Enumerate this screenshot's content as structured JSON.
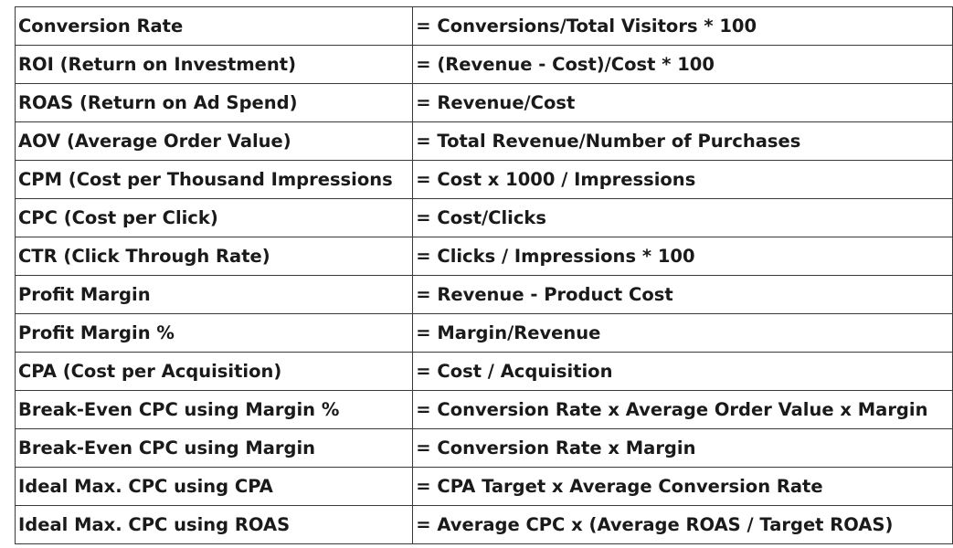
{
  "rows": [
    {
      "metric": "Conversion Rate",
      "formula": "= Conversions/Total Visitors * 100"
    },
    {
      "metric": "ROI (Return on Investment)",
      "formula": "= (Revenue - Cost)/Cost * 100"
    },
    {
      "metric": "ROAS (Return on Ad Spend)",
      "formula": "= Revenue/Cost"
    },
    {
      "metric": "AOV (Average Order Value)",
      "formula": "= Total Revenue/Number of Purchases"
    },
    {
      "metric": "CPM (Cost per Thousand Impressions",
      "formula": "= Cost x 1000 / Impressions"
    },
    {
      "metric": "CPC (Cost per Click)",
      "formula": "= Cost/Clicks"
    },
    {
      "metric": "CTR (Click Through Rate)",
      "formula": "= Clicks / Impressions * 100"
    },
    {
      "metric": "Profit Margin",
      "formula": "= Revenue - Product Cost"
    },
    {
      "metric": "Profit Margin %",
      "formula": "= Margin/Revenue"
    },
    {
      "metric": "CPA (Cost per Acquisition)",
      "formula": "= Cost / Acquisition"
    },
    {
      "metric": "Break-Even CPC using Margin %",
      "formula": "= Conversion Rate x Average Order Value x Margin"
    },
    {
      "metric": "Break-Even CPC using Margin",
      "formula": "= Conversion Rate x Margin"
    },
    {
      "metric": "Ideal Max. CPC using CPA",
      "formula": "= CPA Target x Average Conversion Rate"
    },
    {
      "metric": "Ideal Max. CPC using ROAS",
      "formula": "= Average CPC x (Average ROAS / Target ROAS)"
    }
  ]
}
